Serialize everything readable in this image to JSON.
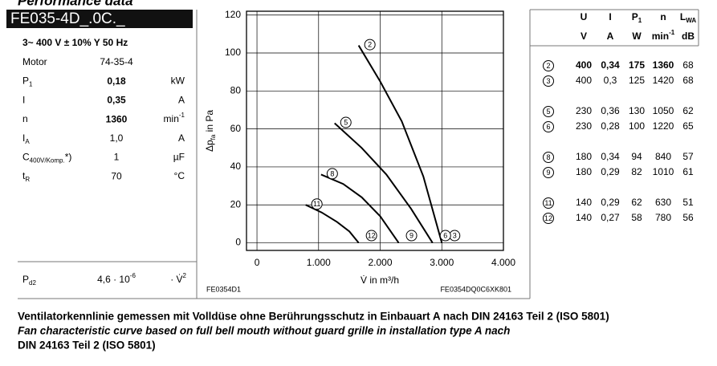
{
  "header": {
    "title": "Performance data",
    "model": "FE035-4D_.0C._",
    "supply": "3~ 400 V ± 10% Y 50 Hz"
  },
  "specs": [
    {
      "label": {
        "text": "Motor"
      },
      "value": "74-35-4"
    },
    {
      "label": {
        "text": "P",
        "sub": "1"
      },
      "value": "0,18",
      "unit": {
        "text": "kW"
      },
      "bold": true
    },
    {
      "label": {
        "text": "I"
      },
      "value": "0,35",
      "unit": {
        "text": "A"
      },
      "bold": true
    },
    {
      "label": {
        "text": "n"
      },
      "value": "1360",
      "unit": {
        "text": "min",
        "sup": "-1"
      },
      "bold": true
    },
    {
      "label": {
        "text": "I",
        "sub": "A"
      },
      "value": "1,0",
      "unit": {
        "text": "A"
      }
    },
    {
      "label": {
        "text": "C",
        "sub": "400V/Komp.",
        "suffix": "*)"
      },
      "value": "1",
      "unit": {
        "text": "µF"
      }
    },
    {
      "label": {
        "text": "t",
        "sub": "R"
      },
      "value": "70",
      "unit": {
        "text": "°C"
      }
    }
  ],
  "pressure": {
    "label": {
      "text": "P",
      "sub": "d2"
    },
    "value": {
      "text": "4,6 · 10",
      "sup": "-6"
    },
    "unit": {
      "text": "· V̇",
      "sup": "2"
    }
  },
  "operating_points": {
    "columns": [
      {
        "symbol": {
          "text": "U"
        },
        "unit": {
          "text": "V"
        }
      },
      {
        "symbol": {
          "text": "I"
        },
        "unit": {
          "text": "A"
        }
      },
      {
        "symbol": {
          "text": "P",
          "sub": "1"
        },
        "unit": {
          "text": "W"
        }
      },
      {
        "symbol": {
          "text": "n"
        },
        "unit": {
          "text": "min",
          "sup": "-1"
        }
      },
      {
        "symbol": {
          "text": "L",
          "sub": "WA"
        },
        "unit": {
          "text": "dB"
        }
      }
    ],
    "groups": [
      [
        {
          "id": "2",
          "values": [
            "400",
            "0,34",
            "175",
            "1360",
            "68"
          ],
          "bold": true
        },
        {
          "id": "3",
          "values": [
            "400",
            "0,3",
            "125",
            "1420",
            "68"
          ]
        }
      ],
      [
        {
          "id": "5",
          "values": [
            "230",
            "0,36",
            "130",
            "1050",
            "62"
          ]
        },
        {
          "id": "6",
          "values": [
            "230",
            "0,28",
            "100",
            "1220",
            "65"
          ]
        }
      ],
      [
        {
          "id": "8",
          "values": [
            "180",
            "0,34",
            "94",
            "840",
            "57"
          ]
        },
        {
          "id": "9",
          "values": [
            "180",
            "0,29",
            "82",
            "1010",
            "61"
          ]
        }
      ],
      [
        {
          "id": "11",
          "values": [
            "140",
            "0,29",
            "62",
            "630",
            "51"
          ]
        },
        {
          "id": "12",
          "values": [
            "140",
            "0,27",
            "58",
            "780",
            "56"
          ]
        }
      ]
    ]
  },
  "chart_data": {
    "type": "line",
    "xlabel": "V̇ in m³/h",
    "ylabel": {
      "text": "Δp",
      "sub": "fa",
      "suffix": " in Pa"
    },
    "xlim": [
      -170,
      4000
    ],
    "ylim": [
      -4,
      122
    ],
    "xticks": [
      0,
      {
        "value": 1000,
        "label": "1.000"
      },
      {
        "value": 2000,
        "label": "2.000"
      },
      {
        "value": 3000,
        "label": "3.000"
      },
      {
        "value": 4000,
        "label": "4.000"
      }
    ],
    "yticks": [
      0,
      20,
      40,
      60,
      80,
      100,
      120
    ],
    "grid": true,
    "color": "#000000",
    "series": [
      {
        "name": "2",
        "end_name": "3",
        "x": [
          1650,
          2000,
          2350,
          2700,
          3000
        ],
        "values": [
          104,
          85,
          64,
          35,
          0
        ]
      },
      {
        "name": "5",
        "end_name": "6",
        "x": [
          1260,
          1700,
          2100,
          2500,
          2850
        ],
        "values": [
          63,
          50,
          36,
          18,
          0
        ]
      },
      {
        "name": "8",
        "end_name": "9",
        "x": [
          1040,
          1400,
          1700,
          2000,
          2300
        ],
        "values": [
          36,
          31,
          24,
          14,
          0
        ]
      },
      {
        "name": "11",
        "end_name": "12",
        "x": [
          790,
          1050,
          1300,
          1500,
          1650
        ],
        "values": [
          20,
          16,
          11,
          6,
          0
        ]
      }
    ]
  },
  "chart_footer": {
    "left": "FE0354D1",
    "right": "FE0354DQ0C6XK801"
  },
  "caption": [
    "Ventilatorkennlinie gemessen mit Volldüse ohne Berührungsschutz in Einbauart A nach DIN 24163 Teil 2 (ISO 5801)",
    "Fan characteristic curve based on full bell mouth without guard grille in installation type A nach",
    "DIN 24163 Teil 2 (ISO 5801)"
  ]
}
